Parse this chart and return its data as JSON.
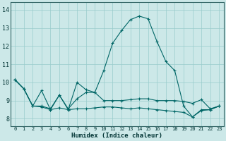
{
  "xlabel": "Humidex (Indice chaleur)",
  "background_color": "#cce8e8",
  "grid_color": "#99cccc",
  "line_color": "#006666",
  "x_ticks": [
    0,
    1,
    2,
    3,
    4,
    5,
    6,
    7,
    8,
    9,
    10,
    11,
    12,
    13,
    14,
    15,
    16,
    17,
    18,
    19,
    20,
    21,
    22,
    23
  ],
  "y_ticks": [
    8,
    9,
    10,
    11,
    12,
    13,
    14
  ],
  "xlim": [
    -0.5,
    23.5
  ],
  "ylim": [
    7.6,
    14.4
  ],
  "series": [
    [
      10.15,
      9.65,
      8.7,
      9.55,
      8.5,
      9.3,
      8.5,
      10.0,
      9.6,
      9.45,
      10.65,
      12.15,
      12.85,
      13.45,
      13.65,
      13.5,
      12.25,
      11.15,
      10.65,
      8.7,
      8.1,
      8.5,
      8.5,
      8.7
    ],
    [
      10.15,
      9.65,
      8.7,
      8.7,
      8.55,
      9.3,
      8.55,
      9.1,
      9.45,
      9.45,
      9.0,
      9.0,
      9.0,
      9.05,
      9.1,
      9.1,
      9.0,
      9.0,
      9.0,
      8.95,
      8.85,
      9.05,
      8.55,
      8.7
    ],
    [
      10.15,
      9.65,
      8.7,
      8.65,
      8.5,
      8.6,
      8.5,
      8.55,
      8.55,
      8.6,
      8.65,
      8.65,
      8.6,
      8.55,
      8.6,
      8.55,
      8.5,
      8.45,
      8.4,
      8.35,
      8.1,
      8.45,
      8.5,
      8.7
    ]
  ]
}
